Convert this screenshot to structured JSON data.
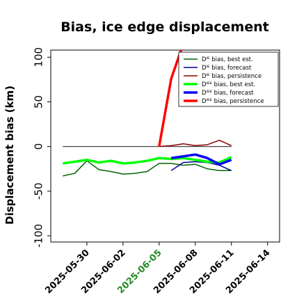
{
  "chart_data": {
    "type": "line",
    "title": "Bias, ice edge displacement",
    "ylabel": "Displacement bias (km)",
    "xlabel": "",
    "ylim": [
      -107,
      108
    ],
    "xlim": [
      "2025-05-27",
      "2025-06-15"
    ],
    "yticks": [
      -100,
      -50,
      0,
      50,
      100
    ],
    "xticks": [
      {
        "date": "2025-05-30",
        "label": "2025-05-30",
        "color": "#000000"
      },
      {
        "date": "2025-06-02",
        "label": "2025-06-02",
        "color": "#000000"
      },
      {
        "date": "2025-06-05",
        "label": "2025-06-05",
        "color": "#228b22"
      },
      {
        "date": "2025-06-08",
        "label": "2025-06-08",
        "color": "#000000"
      },
      {
        "date": "2025-06-11",
        "label": "2025-06-11",
        "color": "#000000"
      },
      {
        "date": "2025-06-14",
        "label": "2025-06-14",
        "color": "#000000"
      }
    ],
    "grid": false,
    "legend_position": "top-right",
    "reference_line": {
      "y": 0,
      "x": [
        "2025-05-28",
        "2025-06-11"
      ],
      "color": "#444444"
    },
    "series": [
      {
        "name": "Dᴵᴱ bias, best est.",
        "color": "#006400",
        "width": 1.5,
        "x": [
          "2025-05-28",
          "2025-05-29",
          "2025-05-30",
          "2025-05-31",
          "2025-06-01",
          "2025-06-02",
          "2025-06-03",
          "2025-06-04",
          "2025-06-05",
          "2025-06-06",
          "2025-06-07",
          "2025-06-08",
          "2025-06-09",
          "2025-06-10",
          "2025-06-11"
        ],
        "y": [
          -33,
          -30,
          -16,
          -26,
          -28,
          -31,
          -30,
          -28,
          -19,
          -19,
          -21,
          -20,
          -25,
          -27,
          -27
        ]
      },
      {
        "name": "Dᴵᴱ bias, forecast",
        "color": "#00008b",
        "width": 1.5,
        "x": [
          "2025-06-06",
          "2025-06-07",
          "2025-06-08",
          "2025-06-09",
          "2025-06-10",
          "2025-06-11"
        ],
        "y": [
          -27,
          -18,
          -17,
          -18,
          -21,
          -27
        ]
      },
      {
        "name": "Dᴵᴱ bias, persistence",
        "color": "#8b0000",
        "width": 1.5,
        "x": [
          "2025-06-05",
          "2025-06-06",
          "2025-06-07",
          "2025-06-08",
          "2025-06-09",
          "2025-06-10",
          "2025-06-11"
        ],
        "y": [
          0,
          1,
          3,
          1,
          2,
          7,
          1
        ]
      },
      {
        "name": "Dᴵᴱᴱ bias, best est.",
        "color": "#00ff00",
        "width": 3.5,
        "x": [
          "2025-05-28",
          "2025-05-29",
          "2025-05-30",
          "2025-05-31",
          "2025-06-01",
          "2025-06-02",
          "2025-06-03",
          "2025-06-04",
          "2025-06-05",
          "2025-06-06",
          "2025-06-07",
          "2025-06-08",
          "2025-06-09",
          "2025-06-10",
          "2025-06-11"
        ],
        "y": [
          -19,
          -17,
          -15,
          -18,
          -16,
          -19,
          -18,
          -16,
          -13,
          -14,
          -13,
          -15,
          -17,
          -18,
          -12
        ]
      },
      {
        "name": "Dᴵᴱᴱ bias, forecast",
        "color": "#0000ff",
        "width": 3.5,
        "x": [
          "2025-06-06",
          "2025-06-07",
          "2025-06-08",
          "2025-06-09",
          "2025-06-10",
          "2025-06-11"
        ],
        "y": [
          -13,
          -11,
          -9,
          -13,
          -20,
          -15
        ]
      },
      {
        "name": "Dᴵᴱᴱ bias, persistence",
        "color": "#ff0000",
        "width": 3.5,
        "x": [
          "2025-06-05",
          "2025-06-06",
          "2025-06-07"
        ],
        "y": [
          0,
          76,
          115
        ]
      }
    ]
  }
}
